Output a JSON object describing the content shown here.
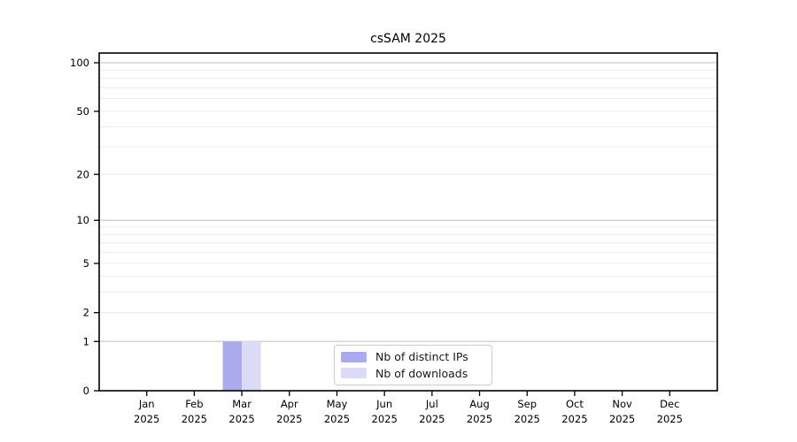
{
  "chart_data": {
    "type": "bar",
    "title": "csSAM 2025",
    "categories": [
      {
        "month": "Jan",
        "year": "2025"
      },
      {
        "month": "Feb",
        "year": "2025"
      },
      {
        "month": "Mar",
        "year": "2025"
      },
      {
        "month": "Apr",
        "year": "2025"
      },
      {
        "month": "May",
        "year": "2025"
      },
      {
        "month": "Jun",
        "year": "2025"
      },
      {
        "month": "Jul",
        "year": "2025"
      },
      {
        "month": "Aug",
        "year": "2025"
      },
      {
        "month": "Sep",
        "year": "2025"
      },
      {
        "month": "Oct",
        "year": "2025"
      },
      {
        "month": "Nov",
        "year": "2025"
      },
      {
        "month": "Dec",
        "year": "2025"
      }
    ],
    "series": [
      {
        "name": "Nb of distinct IPs",
        "color": "#aaaaee",
        "values": [
          0,
          0,
          1,
          0,
          0,
          0,
          0,
          0,
          0,
          0,
          0,
          0
        ]
      },
      {
        "name": "Nb of downloads",
        "color": "#dbdbf8",
        "values": [
          0,
          0,
          1,
          0,
          0,
          0,
          0,
          0,
          0,
          0,
          0,
          0
        ]
      }
    ],
    "xlabel": "",
    "ylabel": "",
    "y_scale": "log1p",
    "y_ticks": [
      0,
      1,
      2,
      5,
      10,
      20,
      50,
      100
    ],
    "y_minor_gridlines": [
      2,
      3,
      4,
      5,
      6,
      7,
      8,
      9,
      20,
      30,
      40,
      50,
      60,
      70,
      80,
      90
    ],
    "y_major_gridlines": [
      1,
      10,
      100
    ],
    "ylim": [
      0,
      115
    ],
    "grid": true,
    "legend_position": "lower-center-inside"
  },
  "colors": {
    "axis": "#000000",
    "tick_label": "#000000",
    "grid_major": "#cccccc",
    "grid_minor": "#ececec",
    "background": "#ffffff"
  }
}
